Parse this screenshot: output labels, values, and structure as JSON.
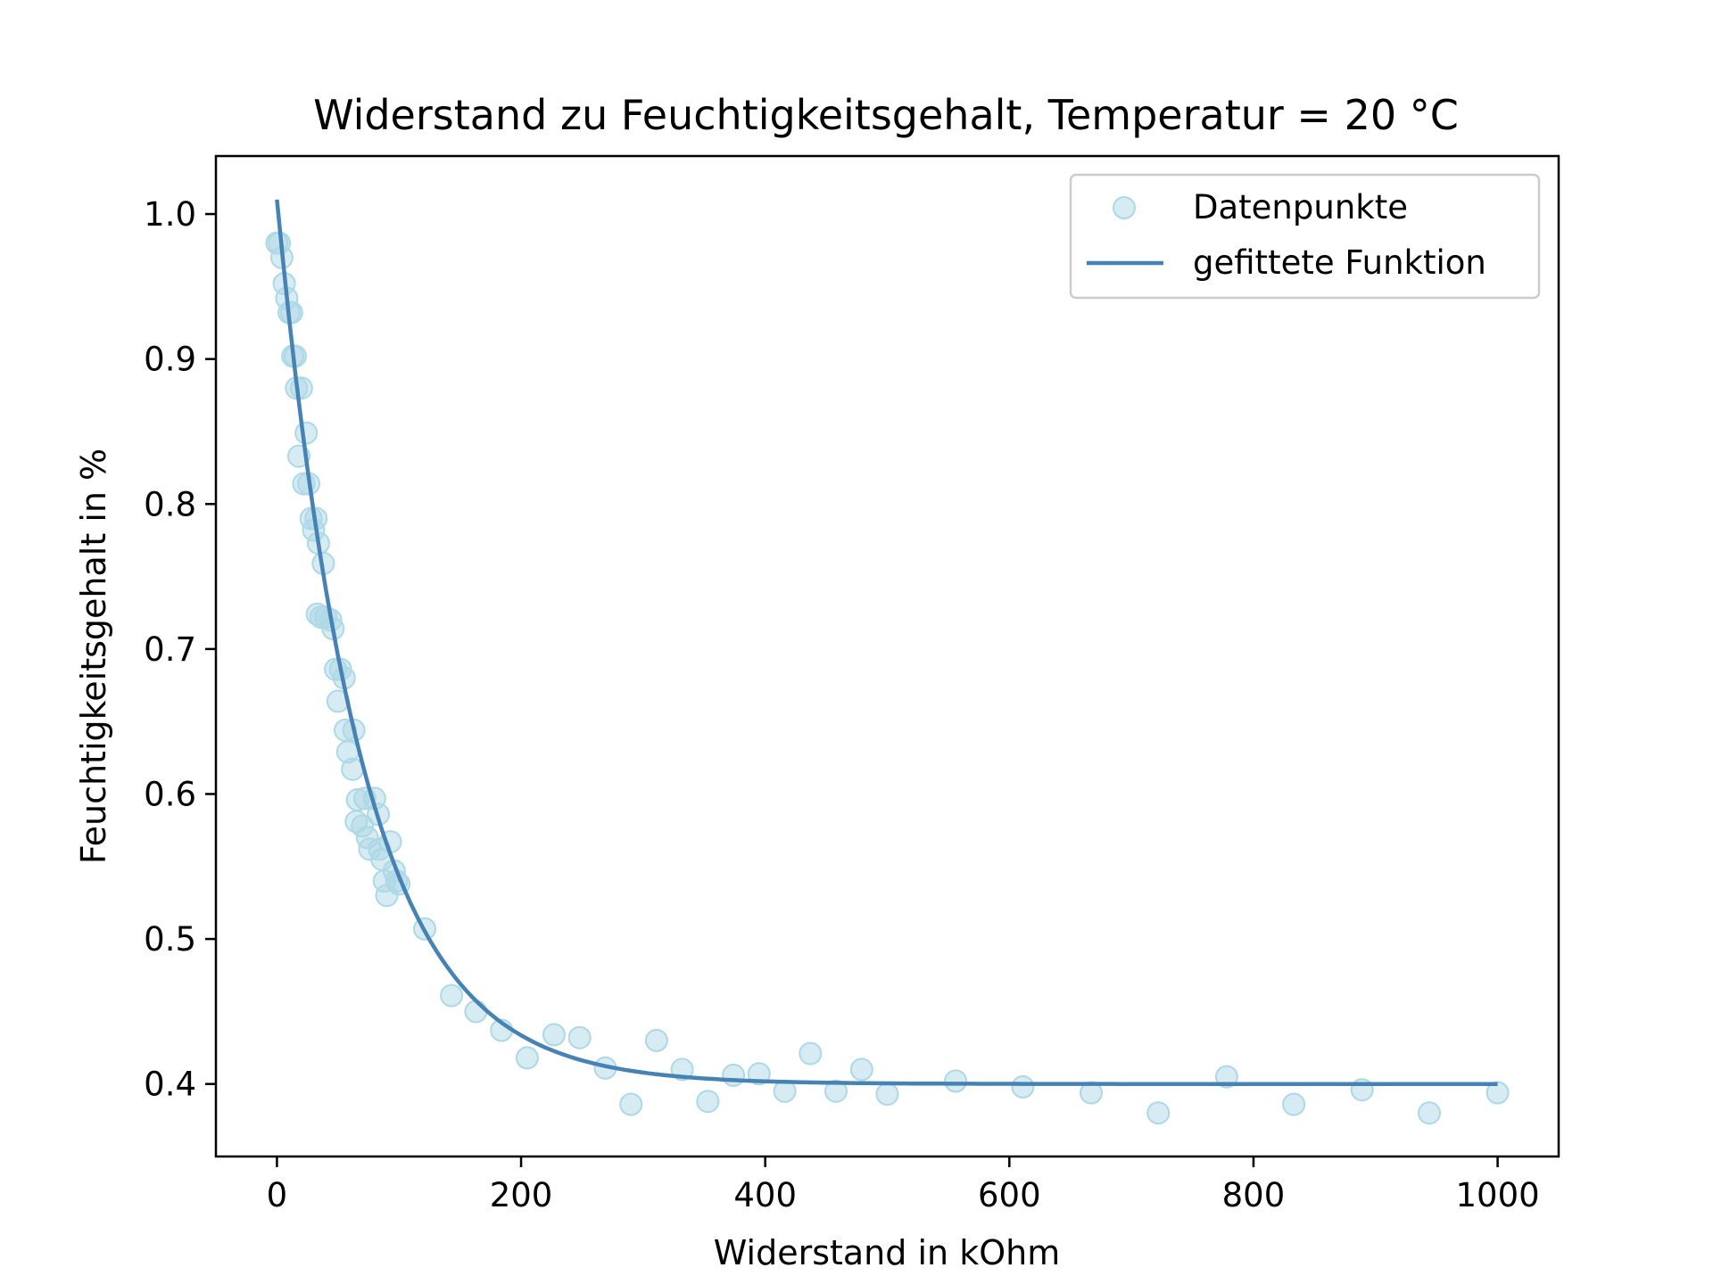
{
  "chart_data": {
    "type": "scatter",
    "title": "Widerstand zu Feuchtigkeitsgehalt, Temperatur = 20 °C",
    "xlabel": "Widerstand in kOhm",
    "ylabel": "Feuchtigkeitsgehalt in %",
    "xlim": [
      -50,
      1050
    ],
    "ylim": [
      0.35,
      1.04
    ],
    "xticks": [
      0,
      200,
      400,
      600,
      800,
      1000
    ],
    "yticks": [
      0.4,
      0.5,
      0.6,
      0.7,
      0.8,
      0.9,
      1.0
    ],
    "xtick_labels": [
      "0",
      "200",
      "400",
      "600",
      "800",
      "1000"
    ],
    "ytick_labels": [
      "0.4",
      "0.5",
      "0.6",
      "0.7",
      "0.8",
      "0.9",
      "1.0"
    ],
    "grid": false,
    "legend_position": "top-right",
    "colors": {
      "points": "#add8e6",
      "line": "#4682b4"
    },
    "series": [
      {
        "name": "Datenpunkte",
        "kind": "scatter",
        "points": [
          [
            0,
            0.98
          ],
          [
            2,
            0.98
          ],
          [
            4,
            0.97
          ],
          [
            6,
            0.952
          ],
          [
            8,
            0.942
          ],
          [
            10,
            0.932
          ],
          [
            12,
            0.932
          ],
          [
            13,
            0.902
          ],
          [
            15,
            0.902
          ],
          [
            16,
            0.88
          ],
          [
            20,
            0.88
          ],
          [
            18,
            0.833
          ],
          [
            22,
            0.814
          ],
          [
            24,
            0.849
          ],
          [
            26,
            0.814
          ],
          [
            28,
            0.79
          ],
          [
            30,
            0.782
          ],
          [
            32,
            0.79
          ],
          [
            34,
            0.773
          ],
          [
            38,
            0.759
          ],
          [
            33,
            0.724
          ],
          [
            36,
            0.722
          ],
          [
            40,
            0.722
          ],
          [
            44,
            0.72
          ],
          [
            46,
            0.714
          ],
          [
            48,
            0.686
          ],
          [
            50,
            0.664
          ],
          [
            52,
            0.686
          ],
          [
            55,
            0.68
          ],
          [
            56,
            0.644
          ],
          [
            58,
            0.629
          ],
          [
            62,
            0.617
          ],
          [
            63,
            0.644
          ],
          [
            66,
            0.596
          ],
          [
            65,
            0.581
          ],
          [
            70,
            0.578
          ],
          [
            72,
            0.597
          ],
          [
            74,
            0.57
          ],
          [
            76,
            0.562
          ],
          [
            80,
            0.597
          ],
          [
            83,
            0.586
          ],
          [
            84,
            0.562
          ],
          [
            86,
            0.555
          ],
          [
            88,
            0.54
          ],
          [
            90,
            0.53
          ],
          [
            93,
            0.567
          ],
          [
            96,
            0.547
          ],
          [
            98,
            0.54
          ],
          [
            100,
            0.538
          ],
          [
            121,
            0.507
          ],
          [
            143,
            0.461
          ],
          [
            163,
            0.45
          ],
          [
            184,
            0.437
          ],
          [
            205,
            0.418
          ],
          [
            227,
            0.434
          ],
          [
            248,
            0.432
          ],
          [
            269,
            0.411
          ],
          [
            290,
            0.386
          ],
          [
            311,
            0.43
          ],
          [
            332,
            0.41
          ],
          [
            353,
            0.388
          ],
          [
            374,
            0.406
          ],
          [
            395,
            0.407
          ],
          [
            416,
            0.395
          ],
          [
            437,
            0.421
          ],
          [
            458,
            0.395
          ],
          [
            479,
            0.41
          ],
          [
            500,
            0.393
          ],
          [
            556,
            0.402
          ],
          [
            611,
            0.398
          ],
          [
            667,
            0.394
          ],
          [
            722,
            0.38
          ],
          [
            778,
            0.405
          ],
          [
            833,
            0.386
          ],
          [
            889,
            0.396
          ],
          [
            944,
            0.38
          ],
          [
            1000,
            0.394
          ]
        ]
      },
      {
        "name": "gefittete Funktion",
        "kind": "line",
        "model": {
          "a": 0.61,
          "k": 0.0145,
          "c": 0.4
        }
      }
    ]
  }
}
